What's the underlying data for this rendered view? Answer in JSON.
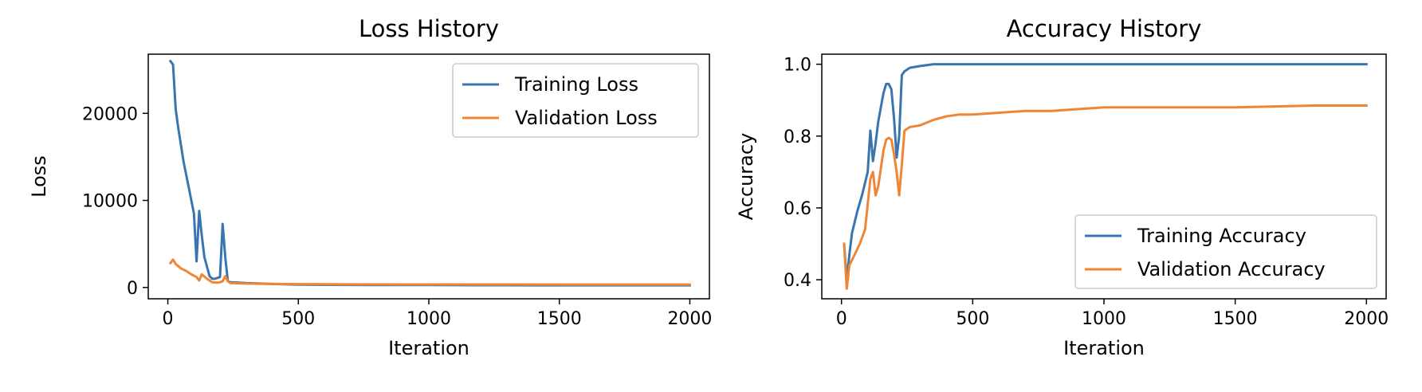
{
  "chart_data": [
    {
      "type": "line",
      "title": "Loss History",
      "xlabel": "Iteration",
      "ylabel": "Loss",
      "xlim": [
        -75,
        2075
      ],
      "ylim": [
        -1300,
        26800
      ],
      "xticks": [
        0,
        500,
        1000,
        1500,
        2000
      ],
      "xtick_labels": [
        "0",
        "500",
        "1000",
        "1500",
        "2000"
      ],
      "yticks": [
        0,
        10000,
        20000
      ],
      "ytick_labels": [
        "0",
        "10000",
        "20000"
      ],
      "grid": false,
      "legend_position": "top-right",
      "series": [
        {
          "name": "Training Loss",
          "color": "#3b75af",
          "x": [
            10,
            20,
            30,
            40,
            60,
            80,
            100,
            110,
            120,
            130,
            140,
            160,
            170,
            180,
            190,
            200,
            210,
            220,
            230,
            240,
            300,
            400,
            500,
            600,
            800,
            1000,
            1200,
            1400,
            1600,
            1800,
            2000
          ],
          "y": [
            26000,
            25600,
            20500,
            18300,
            14500,
            11500,
            8500,
            3000,
            8800,
            6000,
            3500,
            1300,
            1000,
            1000,
            1100,
            1200,
            7300,
            3500,
            700,
            600,
            500,
            400,
            330,
            300,
            280,
            270,
            260,
            250,
            250,
            250,
            250
          ]
        },
        {
          "name": "Validation Loss",
          "color": "#ef8636",
          "x": [
            10,
            20,
            30,
            50,
            70,
            90,
            110,
            120,
            130,
            150,
            170,
            190,
            200,
            210,
            220,
            230,
            240,
            300,
            400,
            500,
            700,
            1000,
            1500,
            2000
          ],
          "y": [
            2800,
            3200,
            2700,
            2200,
            1900,
            1500,
            1200,
            800,
            1500,
            1000,
            600,
            550,
            600,
            700,
            1300,
            700,
            500,
            450,
            400,
            380,
            360,
            350,
            340,
            340
          ]
        }
      ]
    },
    {
      "type": "line",
      "title": "Accuracy History",
      "xlabel": "Iteration",
      "ylabel": "Accuracy",
      "xlim": [
        -75,
        2075
      ],
      "ylim": [
        0.347,
        1.028
      ],
      "xticks": [
        0,
        500,
        1000,
        1500,
        2000
      ],
      "xtick_labels": [
        "0",
        "500",
        "1000",
        "1500",
        "2000"
      ],
      "yticks": [
        0.4,
        0.6,
        0.8,
        1.0
      ],
      "ytick_labels": [
        "0.4",
        "0.6",
        "0.8",
        "1.0"
      ],
      "grid": false,
      "legend_position": "lower-right",
      "series": [
        {
          "name": "Training Accuracy",
          "color": "#3b75af",
          "x": [
            10,
            20,
            30,
            40,
            60,
            80,
            100,
            110,
            120,
            130,
            140,
            160,
            170,
            180,
            190,
            200,
            210,
            220,
            230,
            240,
            260,
            300,
            350,
            400,
            500,
            700,
            1000,
            1500,
            2000
          ],
          "y": [
            0.5,
            0.4,
            0.47,
            0.53,
            0.59,
            0.64,
            0.7,
            0.815,
            0.73,
            0.78,
            0.84,
            0.92,
            0.945,
            0.945,
            0.93,
            0.85,
            0.74,
            0.8,
            0.97,
            0.98,
            0.99,
            0.995,
            1.0,
            1.0,
            1.0,
            1.0,
            1.0,
            1.0,
            1.0
          ]
        },
        {
          "name": "Validation Accuracy",
          "color": "#ef8636",
          "x": [
            10,
            20,
            30,
            50,
            70,
            90,
            110,
            120,
            130,
            140,
            160,
            170,
            180,
            190,
            200,
            210,
            220,
            230,
            240,
            260,
            300,
            350,
            400,
            450,
            500,
            600,
            700,
            800,
            1000,
            1200,
            1500,
            1800,
            1900,
            2000
          ],
          "y": [
            0.5,
            0.375,
            0.44,
            0.47,
            0.5,
            0.54,
            0.68,
            0.7,
            0.635,
            0.66,
            0.76,
            0.79,
            0.795,
            0.79,
            0.75,
            0.7,
            0.635,
            0.72,
            0.815,
            0.825,
            0.83,
            0.845,
            0.855,
            0.86,
            0.86,
            0.865,
            0.87,
            0.87,
            0.88,
            0.88,
            0.88,
            0.885,
            0.885,
            0.885
          ]
        }
      ]
    }
  ]
}
